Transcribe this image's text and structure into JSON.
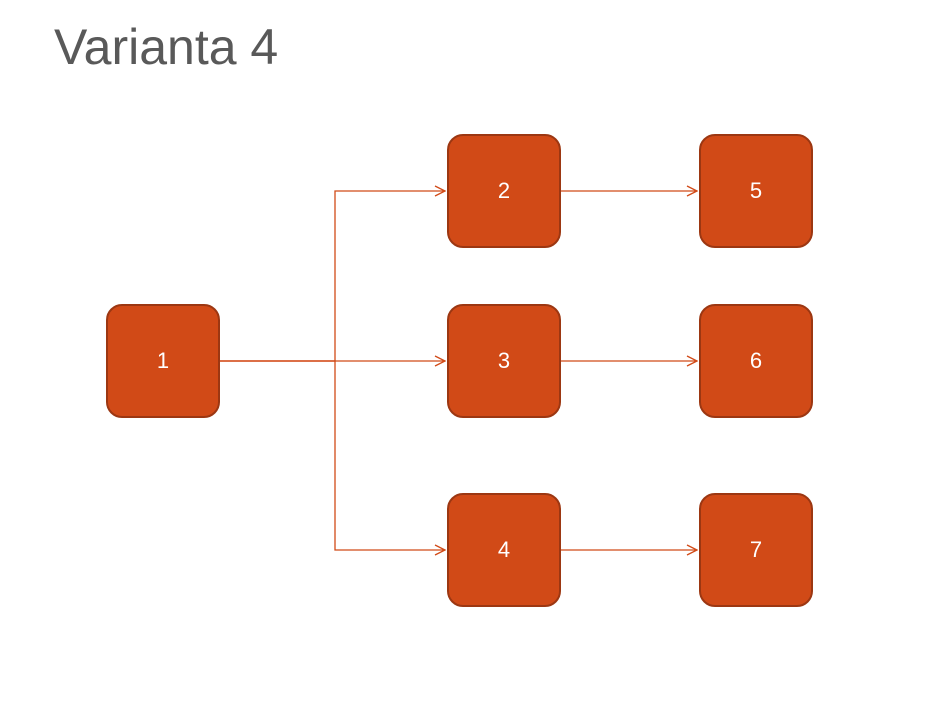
{
  "title": "Varianta 4",
  "colors": {
    "node_fill": "#d14a17",
    "node_border": "#9c3712",
    "connector": "#d14a17",
    "title_text": "#595959"
  },
  "nodes": [
    {
      "id": "n1",
      "label": "1"
    },
    {
      "id": "n2",
      "label": "2"
    },
    {
      "id": "n3",
      "label": "3"
    },
    {
      "id": "n4",
      "label": "4"
    },
    {
      "id": "n5",
      "label": "5"
    },
    {
      "id": "n6",
      "label": "6"
    },
    {
      "id": "n7",
      "label": "7"
    }
  ],
  "edges": [
    {
      "from": "1",
      "to": "2"
    },
    {
      "from": "1",
      "to": "3"
    },
    {
      "from": "1",
      "to": "4"
    },
    {
      "from": "2",
      "to": "5"
    },
    {
      "from": "3",
      "to": "6"
    },
    {
      "from": "4",
      "to": "7"
    }
  ]
}
